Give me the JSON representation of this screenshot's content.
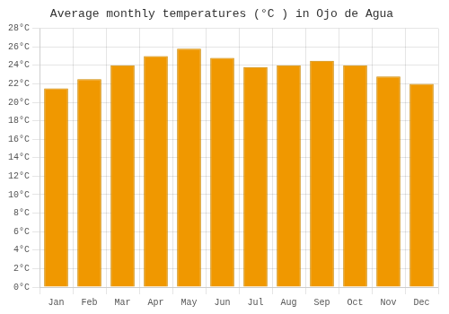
{
  "chart_data": {
    "type": "bar",
    "title": "Average monthly temperatures (°C ) in Ojo de Agua",
    "categories": [
      "Jan",
      "Feb",
      "Mar",
      "Apr",
      "May",
      "Jun",
      "Jul",
      "Aug",
      "Sep",
      "Oct",
      "Nov",
      "Dec"
    ],
    "values": [
      21.5,
      22.5,
      24.0,
      25.0,
      25.8,
      24.8,
      23.8,
      24.0,
      24.5,
      24.0,
      22.8,
      22.0
    ],
    "color": "#F09800",
    "ylim": [
      0,
      28
    ],
    "yticks": [
      {
        "value": 0,
        "label": "0°C"
      },
      {
        "value": 2,
        "label": "2°C"
      },
      {
        "value": 4,
        "label": "4°C"
      },
      {
        "value": 6,
        "label": "6°C"
      },
      {
        "value": 8,
        "label": "8°C"
      },
      {
        "value": 10,
        "label": "10°C"
      },
      {
        "value": 12,
        "label": "12°C"
      },
      {
        "value": 14,
        "label": "14°C"
      },
      {
        "value": 16,
        "label": "16°C"
      },
      {
        "value": 18,
        "label": "18°C"
      },
      {
        "value": 20,
        "label": "20°C"
      },
      {
        "value": 22,
        "label": "22°C"
      },
      {
        "value": 24,
        "label": "24°C"
      },
      {
        "value": 26,
        "label": "26°C"
      },
      {
        "value": 28,
        "label": "28°C"
      }
    ],
    "grid": true
  }
}
